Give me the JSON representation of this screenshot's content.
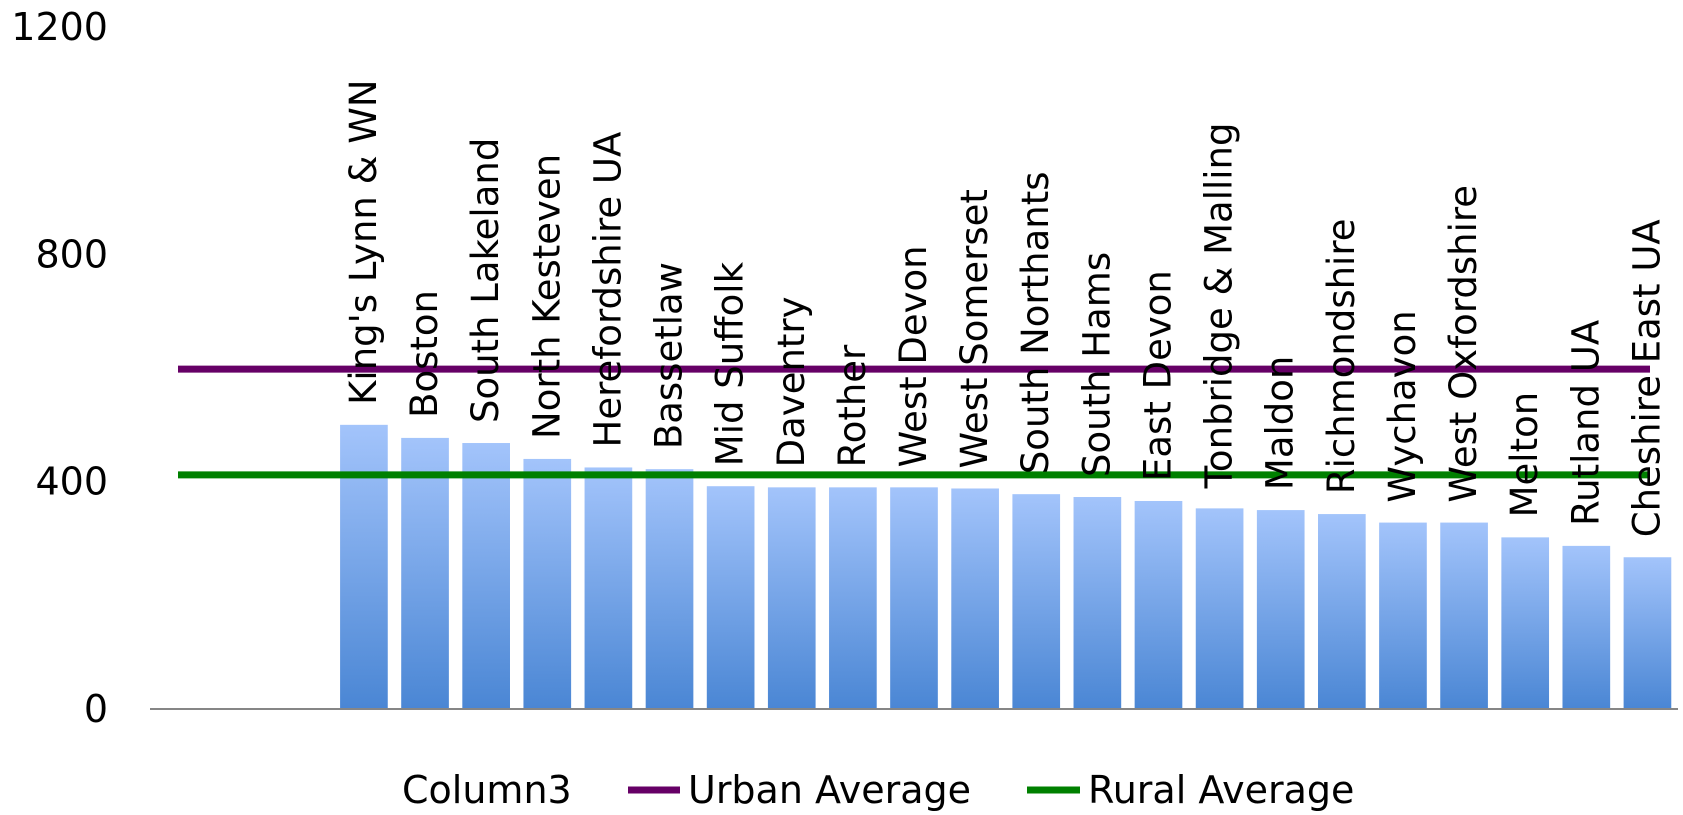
{
  "chart_data": {
    "type": "bar",
    "title": "",
    "xlabel": "",
    "ylabel": "",
    "ylim": [
      0,
      1200
    ],
    "yticks": [
      0,
      400,
      800,
      1200
    ],
    "grid": false,
    "legend_position": "bottom",
    "categories": [
      "King's Lynn & WN",
      "Boston",
      "South Lakeland",
      "North Kesteven",
      "Herefordshire UA",
      "Bassetlaw",
      "Mid Suffolk",
      "Daventry",
      "Rother",
      "West Devon",
      "West Somerset",
      "South Northants",
      "South Hams",
      "East Devon",
      "Tonbridge & Malling",
      "Maldon",
      "Richmondshire",
      "Wychavon",
      "West Oxfordshire",
      "Melton",
      "Rutland UA",
      "Cheshire East UA"
    ],
    "series": [
      {
        "name": "Column3",
        "kind": "bar",
        "color": "#7faeea",
        "values": [
          500,
          477,
          468,
          440,
          425,
          422,
          392,
          390,
          390,
          390,
          388,
          378,
          373,
          366,
          353,
          350,
          343,
          328,
          328,
          302,
          287,
          267
        ]
      },
      {
        "name": "Urban Average",
        "kind": "line",
        "color": "#660066",
        "value": 598
      },
      {
        "name": "Rural Average",
        "kind": "line",
        "color": "#008000",
        "value": 412
      }
    ]
  }
}
